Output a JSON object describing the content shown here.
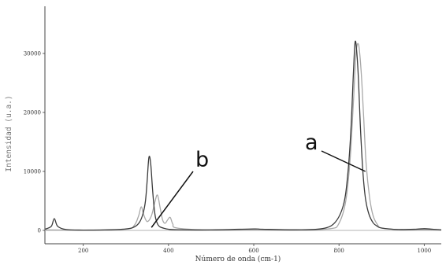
{
  "chart_data": {
    "type": "line",
    "title": "",
    "xlabel": "Número de onda (cm-1)",
    "ylabel": "Intensidad (u.a.)",
    "xlim": [
      110,
      1040
    ],
    "ylim": [
      0,
      38000
    ],
    "xticks": [
      "200",
      "400",
      "600",
      "800",
      "1000"
    ],
    "xtick_values": [
      200,
      400,
      600,
      800,
      1000
    ],
    "yticks": [
      "0",
      "10000",
      "20000",
      "30000"
    ],
    "ytick_values": [
      0,
      10000,
      20000,
      30000
    ],
    "grid": false,
    "series": [
      {
        "color": "#3a3a3a",
        "x": [
          110,
          125,
          132,
          140,
          160,
          200,
          250,
          300,
          320,
          332,
          340,
          346,
          350,
          354,
          358,
          362,
          366,
          370,
          375,
          380,
          390,
          400,
          420,
          500,
          600,
          620,
          700,
          760,
          790,
          810,
          820,
          828,
          834,
          838,
          842,
          846,
          850,
          856,
          862,
          870,
          880,
          890,
          900,
          940,
          980,
          1000,
          1020,
          1040
        ],
        "y": [
          200,
          700,
          2000,
          700,
          150,
          60,
          80,
          250,
          600,
          1400,
          2800,
          5000,
          8500,
          12400,
          11500,
          7500,
          4000,
          2000,
          1000,
          600,
          350,
          200,
          120,
          80,
          250,
          200,
          100,
          300,
          1300,
          4200,
          9000,
          17000,
          27000,
          32000,
          30000,
          25000,
          18000,
          10000,
          5500,
          2800,
          1300,
          700,
          400,
          150,
          200,
          300,
          200,
          100
        ]
      },
      {
        "color": "#a8a8a8",
        "x": [
          110,
          200,
          300,
          320,
          330,
          336,
          342,
          350,
          360,
          368,
          374,
          380,
          386,
          392,
          398,
          404,
          410,
          420,
          500,
          600,
          700,
          780,
          800,
          816,
          826,
          834,
          840,
          846,
          852,
          858,
          864,
          872,
          880,
          890,
          900,
          940,
          1000,
          1040
        ],
        "y": [
          100,
          50,
          200,
          900,
          2500,
          4000,
          2600,
          1500,
          2500,
          4800,
          6000,
          4000,
          1800,
          1200,
          1800,
          2200,
          1100,
          400,
          80,
          150,
          80,
          300,
          1200,
          5000,
          12000,
          22000,
          30000,
          31500,
          27000,
          19000,
          11000,
          5500,
          2500,
          1000,
          400,
          150,
          150,
          100
        ]
      }
    ],
    "annotations": [
      {
        "text": "a",
        "target_x": 862,
        "target_y": 10000
      },
      {
        "text": "b",
        "target_x": 360,
        "target_y": 500
      }
    ]
  }
}
